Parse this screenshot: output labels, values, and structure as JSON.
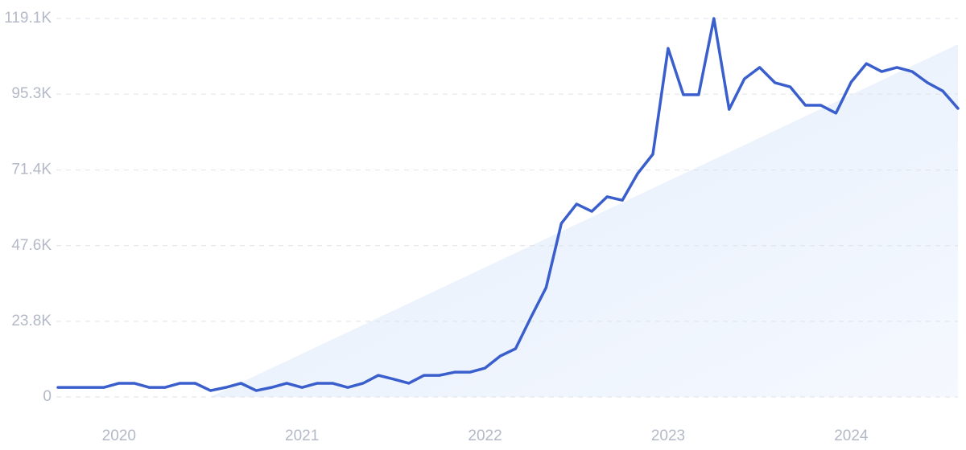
{
  "chart_data": {
    "type": "line",
    "categories": [
      null,
      null,
      null,
      null,
      "2020",
      null,
      null,
      null,
      null,
      null,
      null,
      null,
      null,
      null,
      null,
      null,
      "2021",
      null,
      null,
      null,
      null,
      null,
      null,
      null,
      null,
      null,
      null,
      null,
      "2022",
      null,
      null,
      null,
      null,
      null,
      null,
      null,
      null,
      null,
      null,
      null,
      "2023",
      null,
      null,
      null,
      null,
      null,
      null,
      null,
      null,
      null,
      null,
      null,
      "2024",
      null,
      null,
      null,
      null,
      null,
      null,
      null
    ],
    "series": [
      {
        "color": "#3a5fcd",
        "values": [
          3000,
          3000,
          3000,
          3000,
          4300,
          4300,
          3000,
          3000,
          4300,
          4300,
          2000,
          3000,
          4300,
          2000,
          3000,
          4300,
          3000,
          4300,
          4300,
          3000,
          4300,
          6800,
          5600,
          4300,
          6800,
          6800,
          7800,
          7800,
          9100,
          12900,
          15200,
          25000,
          34400,
          54600,
          60700,
          58400,
          63000,
          61900,
          70300,
          76400,
          109700,
          95100,
          95100,
          119100,
          90500,
          100100,
          103700,
          98900,
          97600,
          91800,
          91800,
          89300,
          99100,
          104900,
          102400,
          103700,
          102400,
          98900,
          96300,
          90800
        ]
      }
    ],
    "trend": {
      "color": "#dbe8fb",
      "values": [
        null,
        null,
        null,
        null,
        null,
        null,
        null,
        null,
        null,
        null,
        0,
        2265,
        4530,
        6795,
        9060,
        11325,
        13590,
        15855,
        18120,
        20385,
        22650,
        24915,
        27180,
        29445,
        31710,
        33975,
        36240,
        38505,
        40770,
        43035,
        45300,
        47565,
        49830,
        52095,
        54360,
        56625,
        58890,
        61155,
        63420,
        65685,
        67950,
        70215,
        72480,
        74745,
        77010,
        79275,
        81540,
        83805,
        86070,
        88335,
        90600,
        92865,
        95130,
        97395,
        99660,
        101925,
        104190,
        106455,
        108720,
        110985
      ]
    },
    "ylim": [
      0,
      119100
    ],
    "yticks": [
      0,
      {
        "value": 23800,
        "label": "23.8K"
      },
      {
        "value": 47600,
        "label": "47.6K"
      },
      {
        "value": 71400,
        "label": "71.4K"
      },
      {
        "value": 95300,
        "label": "95.3K"
      },
      {
        "value": 119100,
        "label": "119.1K"
      }
    ],
    "grid": true
  }
}
